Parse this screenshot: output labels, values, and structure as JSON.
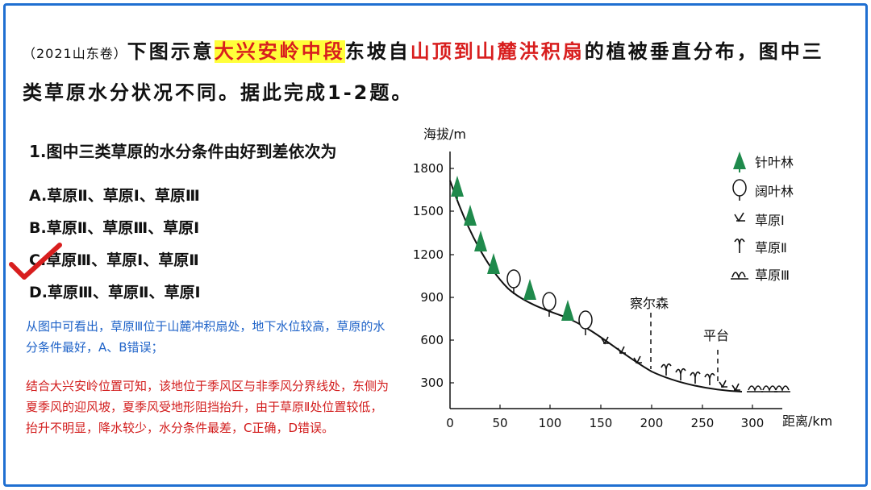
{
  "stem": {
    "source": "（2021山东卷）",
    "p1": "下图示意",
    "place": "大兴安岭中段",
    "p2": "东坡自",
    "range": "山顶到山麓洪积扇",
    "p3": "的植被垂直分布，图中三类草原水分状况不同。据此完成1-2题。"
  },
  "question": "1.图中三类草原的水分条件由好到差依次为",
  "options": [
    "A.草原Ⅱ、草原Ⅰ、草原Ⅲ",
    "B.草原Ⅱ、草原Ⅲ、草原Ⅰ",
    "C.草原Ⅲ、草原Ⅰ、草原Ⅱ",
    "D.草原Ⅲ、草原Ⅱ、草原Ⅰ"
  ],
  "explanation_blue": "从图中可看出，草原Ⅲ位于山麓冲积扇处，地下水位较高，草原的水分条件最好，A、B错误；",
  "explanation_red": "结合大兴安岭位置可知，该地位于季风区与非季风分界线处，东侧为夏季风的迎风坡，夏季风受地形阻挡抬升，由于草原Ⅱ处位置较低，抬升不明显，降水较少，水分条件最差，C正确，D错误。",
  "chart": {
    "ylabel": "海拔/m",
    "xlabel": "距离/km",
    "yticks": [
      "1800",
      "1500",
      "1200",
      "900",
      "600",
      "300"
    ],
    "xticks": [
      "0",
      "50",
      "100",
      "150",
      "200",
      "250",
      "300"
    ],
    "label_chaersen": "察尔森",
    "label_pingtai": "平台"
  },
  "legend": [
    "针叶林",
    "阔叶林",
    "草原Ⅰ",
    "草原Ⅱ",
    "草原Ⅲ"
  ],
  "colors": {
    "frame": "#1f6fd1",
    "highlight": "#ffff3a",
    "red": "#d81e1e",
    "blue": "#1f63c8",
    "tree": "#1f8a4c"
  }
}
